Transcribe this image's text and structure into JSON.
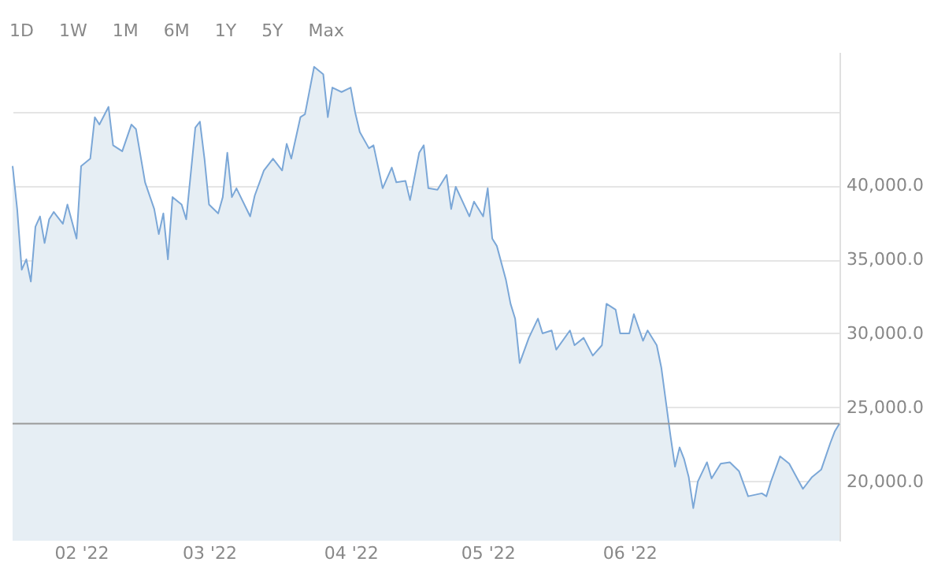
{
  "chart_data": {
    "type": "area",
    "annotations": [
      "1D",
      "1W",
      "1M",
      "6M",
      "1Y",
      "5Y",
      "Max"
    ],
    "x": [
      "2022-01-17",
      "2022-01-18",
      "2022-01-19",
      "2022-01-20",
      "2022-01-21",
      "2022-01-22",
      "2022-01-23",
      "2022-01-24",
      "2022-01-25",
      "2022-01-26",
      "2022-01-28",
      "2022-01-29",
      "2022-01-31",
      "2022-02-01",
      "2022-02-03",
      "2022-02-04",
      "2022-02-05",
      "2022-02-07",
      "2022-02-08",
      "2022-02-10",
      "2022-02-12",
      "2022-02-13",
      "2022-02-15",
      "2022-02-17",
      "2022-02-18",
      "2022-02-19",
      "2022-02-20",
      "2022-02-21",
      "2022-02-23",
      "2022-02-24",
      "2022-02-26",
      "2022-02-27",
      "2022-02-28",
      "2022-03-01",
      "2022-03-03",
      "2022-03-04",
      "2022-03-05",
      "2022-03-06",
      "2022-03-07",
      "2022-03-10",
      "2022-03-11",
      "2022-03-13",
      "2022-03-15",
      "2022-03-17",
      "2022-03-18",
      "2022-03-19",
      "2022-03-21",
      "2022-03-22",
      "2022-03-24",
      "2022-03-26",
      "2022-03-27",
      "2022-03-28",
      "2022-03-30",
      "2022-04-01",
      "2022-04-02",
      "2022-04-03",
      "2022-04-05",
      "2022-04-06",
      "2022-04-08",
      "2022-04-10",
      "2022-04-11",
      "2022-04-13",
      "2022-04-14",
      "2022-04-16",
      "2022-04-17",
      "2022-04-18",
      "2022-04-20",
      "2022-04-22",
      "2022-04-23",
      "2022-04-24",
      "2022-04-27",
      "2022-04-28",
      "2022-04-30",
      "2022-05-01",
      "2022-05-02",
      "2022-05-03",
      "2022-05-05",
      "2022-05-06",
      "2022-05-07",
      "2022-05-08",
      "2022-05-10",
      "2022-05-12",
      "2022-05-13",
      "2022-05-15",
      "2022-05-16",
      "2022-05-19",
      "2022-05-20",
      "2022-05-22",
      "2022-05-24",
      "2022-05-26",
      "2022-05-27",
      "2022-05-29",
      "2022-05-30",
      "2022-06-01",
      "2022-06-02",
      "2022-06-04",
      "2022-06-05",
      "2022-06-07",
      "2022-06-08",
      "2022-06-10",
      "2022-06-11",
      "2022-06-12",
      "2022-06-13",
      "2022-06-14",
      "2022-06-15",
      "2022-06-16",
      "2022-06-18",
      "2022-06-19",
      "2022-06-21",
      "2022-06-23",
      "2022-06-25",
      "2022-06-27",
      "2022-06-30",
      "2022-07-01",
      "2022-07-02",
      "2022-07-04",
      "2022-07-06",
      "2022-07-09",
      "2022-07-11",
      "2022-07-13",
      "2022-07-15",
      "2022-07-16",
      "2022-07-17"
    ],
    "series": [
      {
        "color": "#7ba7d7",
        "values": [
          41300,
          38400,
          34300,
          35000,
          33500,
          37200,
          37900,
          36100,
          37700,
          38200,
          37400,
          38700,
          36400,
          41300,
          41800,
          44600,
          44100,
          45300,
          42700,
          42300,
          44100,
          43800,
          40200,
          38400,
          36700,
          38100,
          35000,
          39200,
          38700,
          37700,
          43900,
          44300,
          41800,
          38700,
          38100,
          39200,
          42200,
          39200,
          39800,
          37900,
          39300,
          41000,
          41800,
          41000,
          42800,
          41800,
          44600,
          44800,
          48000,
          47500,
          44600,
          46600,
          46300,
          46600,
          44900,
          43600,
          42500,
          42700,
          39800,
          41200,
          40200,
          40300,
          39000,
          42200,
          42700,
          39800,
          39700,
          40700,
          38400,
          39900,
          37900,
          38900,
          37900,
          39800,
          36400,
          35900,
          33600,
          32000,
          31000,
          28000,
          29700,
          31000,
          30000,
          30200,
          28900,
          30200,
          29200,
          29700,
          28500,
          29200,
          32000,
          31600,
          30000,
          30000,
          31300,
          29500,
          30200,
          29200,
          27700,
          23100,
          21000,
          22300,
          21500,
          20300,
          18200,
          20000,
          21300,
          20200,
          21200,
          21300,
          20700,
          19000,
          19200,
          19000,
          20000,
          21700,
          21200,
          19500,
          20300,
          20800,
          22600,
          23400,
          23900
        ]
      }
    ],
    "xlim": [
      "2022-01-17",
      "2022-07-17"
    ],
    "xticks": [
      {
        "value": "2022-02-01",
        "label": "02 '22"
      },
      {
        "value": "2022-03-01",
        "label": "03 '22"
      },
      {
        "value": "2022-04-01",
        "label": "04 '22"
      },
      {
        "value": "2022-05-01",
        "label": "05 '22"
      },
      {
        "value": "2022-06-01",
        "label": "06 '22"
      }
    ],
    "ylim": [
      16000,
      49000
    ],
    "yticks": [
      {
        "value": 20000,
        "label": "20,000.0"
      },
      {
        "value": 25000,
        "label": "25,000.0"
      },
      {
        "value": 30000,
        "label": "30,000.0"
      },
      {
        "value": 35000,
        "label": "35,000.0"
      },
      {
        "value": 40000,
        "label": "40,000.0"
      },
      {
        "value": 45000,
        "label": null
      }
    ],
    "ref_lines": [
      {
        "axis": "y",
        "value": 23900,
        "color": "#999999"
      }
    ],
    "grid": "y"
  }
}
